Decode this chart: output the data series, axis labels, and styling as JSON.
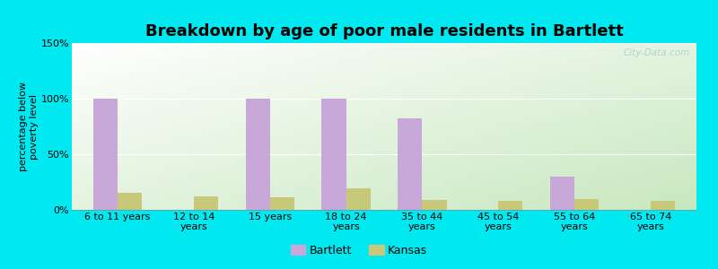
{
  "title": "Breakdown by age of poor male residents in Bartlett",
  "categories": [
    "6 to 11 years",
    "12 to 14\nyears",
    "15 years",
    "18 to 24\nyears",
    "35 to 44\nyears",
    "45 to 54\nyears",
    "55 to 64\nyears",
    "65 to 74\nyears"
  ],
  "bartlett_values": [
    100,
    0,
    100,
    100,
    82,
    0,
    30,
    0
  ],
  "kansas_values": [
    15,
    12,
    11,
    19,
    9,
    8,
    10,
    8
  ],
  "bartlett_color": "#c8a8d8",
  "kansas_color": "#c8c87a",
  "ylabel": "percentage below\npoverty level",
  "ylim": [
    0,
    150
  ],
  "yticks": [
    0,
    50,
    100,
    150
  ],
  "ytick_labels": [
    "0%",
    "50%",
    "100%",
    "150%"
  ],
  "background_color": "#00e8f0",
  "plot_bg_topleft": "#ffffff",
  "plot_bg_bottomright": "#c8e8c0",
  "watermark": "City-Data.com",
  "bar_width": 0.32,
  "title_fontsize": 13,
  "axis_fontsize": 8,
  "legend_fontsize": 9
}
